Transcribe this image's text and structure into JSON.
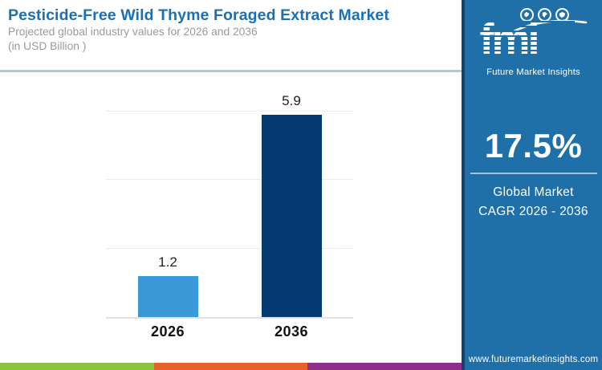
{
  "header": {
    "title": "Pesticide-Free Wild Thyme Foraged Extract Market",
    "subtitle_line1": "Projected global industry values for 2026 and 2036",
    "subtitle_line2": "(in USD Billion )"
  },
  "chart_data": {
    "type": "bar",
    "categories": [
      "2026",
      "2036"
    ],
    "values": [
      1.2,
      5.9
    ],
    "value_labels": [
      "1.2",
      "5.9"
    ],
    "bar_colors": [
      "#3A99D8",
      "#053B72"
    ],
    "title": "Pesticide-Free Wild Thyme Foraged Extract Market",
    "subtitle": "Projected global industry values for 2026 and 2036 (in USD Billion )",
    "xlabel": "",
    "ylabel": "",
    "unit": "USD Billion",
    "ylim": [
      0,
      7.2
    ],
    "gridline_values": [
      2,
      4,
      6
    ],
    "grid": true,
    "legend_position": "none"
  },
  "sidebar": {
    "logo": {
      "text": "fmi",
      "tagline": "Future Market Insights",
      "icons": [
        "america-map-icon",
        "asia-map-icon",
        "globe-icon"
      ]
    },
    "cagr_value": "17.5%",
    "cagr_label_line1": "Global Market",
    "cagr_label_line2": "CAGR 2026 - 2036",
    "website": "www.futuremarketinsights.com"
  },
  "footer": {
    "stripe_colors": [
      "#8CC341",
      "#E8602B",
      "#8E2E8D"
    ]
  },
  "colors": {
    "title_blue": "#1B70B5",
    "subtitle_gray": "#9A9A9A",
    "panel_blue": "#1F6FA9",
    "panel_border": "#0E4474",
    "bar_2026": "#3A99D8",
    "bar_2036": "#053B72",
    "header_divider": "#A9CBE2",
    "gridline": "#F1E9E9"
  }
}
